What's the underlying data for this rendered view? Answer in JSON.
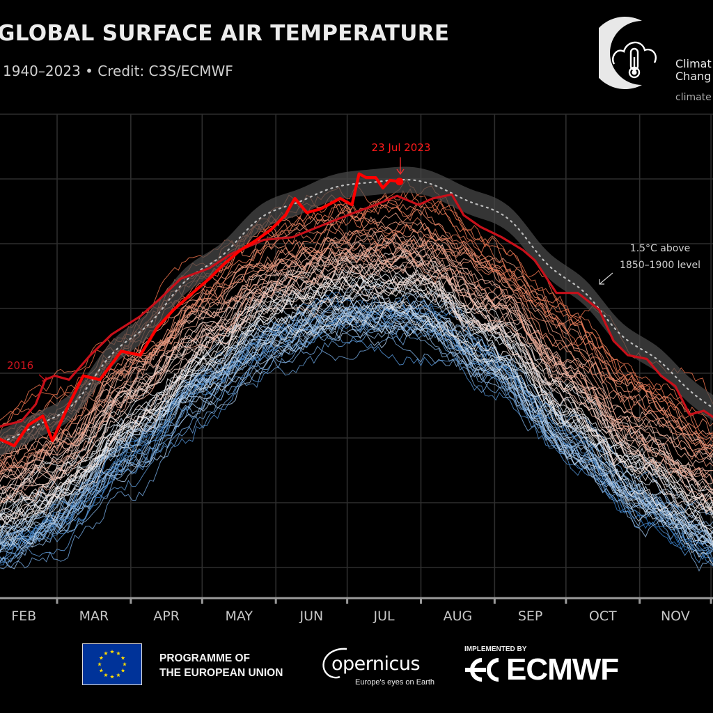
{
  "header": {
    "title": "GLOBAL SURFACE AIR TEMPERATURE",
    "subtitle": "1940–2023 • Credit: C3S/ECMWF"
  },
  "branding": {
    "c3s_line1": "Climat",
    "c3s_line2": "Chang",
    "c3s_url": "climate",
    "eu_line1": "PROGRAMME OF",
    "eu_line2": "THE EUROPEAN UNION",
    "copernicus_word": "opernicus",
    "copernicus_tagline": "Europe's eyes on Earth",
    "implemented_by": "IMPLEMENTED BY",
    "ecmwf": "ECMWF"
  },
  "colors": {
    "background": "#000000",
    "grid": "#2e2e2e",
    "axis": "#9a9a9a",
    "highlight_2023": "#ff0000",
    "highlight_2016": "#c8101a",
    "band": "#4a4a4a",
    "band_dots": "#bdbdbd",
    "cold_year": "#2f78c4",
    "mid_year": "#f2f2f2",
    "warm_year": "#e8704a",
    "eu_blue": "#003399",
    "eu_star": "#ffdd00"
  },
  "chart_data": {
    "type": "line",
    "title": "GLOBAL SURFACE AIR TEMPERATURE",
    "subtitle": "1940–2023 • Credit: C3S/ECMWF",
    "xlabel": "",
    "ylabel": "",
    "x_unit": "day of year",
    "xlim": [
      36,
      336
    ],
    "ylim": [
      13.75,
      17.5
    ],
    "grid": true,
    "y_gridlines": [
      14.0,
      14.5,
      15.0,
      15.5,
      16.0,
      16.5,
      17.0,
      17.5
    ],
    "y_tick_labels_visible": false,
    "month_ticks": [
      {
        "label": "",
        "day": 32
      },
      {
        "label": "",
        "day": 60
      },
      {
        "label": "",
        "day": 91
      },
      {
        "label": "",
        "day": 121
      },
      {
        "label": "",
        "day": 152
      },
      {
        "label": "",
        "day": 182
      },
      {
        "label": "",
        "day": 213
      },
      {
        "label": "",
        "day": 244
      },
      {
        "label": "",
        "day": 274
      },
      {
        "label": "",
        "day": 305
      },
      {
        "label": "",
        "day": 335
      }
    ],
    "month_labels": [
      {
        "label": "FEB",
        "start": 32,
        "end": 60
      },
      {
        "label": "MAR",
        "start": 60,
        "end": 91
      },
      {
        "label": "APR",
        "start": 91,
        "end": 121
      },
      {
        "label": "MAY",
        "start": 121,
        "end": 152
      },
      {
        "label": "JUN",
        "start": 152,
        "end": 182
      },
      {
        "label": "JUL",
        "start": 182,
        "end": 213
      },
      {
        "label": "AUG",
        "start": 213,
        "end": 244
      },
      {
        "label": "SEP",
        "start": 244,
        "end": 274
      },
      {
        "label": "OCT",
        "start": 274,
        "end": 305
      },
      {
        "label": "NOV",
        "start": 305,
        "end": 335
      }
    ],
    "threshold_band": {
      "name": "1.5°C above 1850–1900 level",
      "half_width_c": 0.1,
      "x": [
        36,
        60,
        91,
        121,
        152,
        182,
        209,
        244,
        274,
        305,
        335
      ],
      "values": [
        14.97,
        15.16,
        15.77,
        16.31,
        16.77,
        16.96,
        17.0,
        16.77,
        16.23,
        15.69,
        15.26
      ]
    },
    "background_years": {
      "first_year": 1940,
      "last_year": 2022,
      "climatology_x": [
        36,
        60,
        91,
        121,
        152,
        182,
        213,
        244,
        274,
        305,
        335
      ],
      "climatology_values": [
        14.62,
        14.83,
        15.37,
        15.85,
        16.23,
        16.39,
        16.37,
        16.02,
        15.48,
        14.99,
        14.67
      ],
      "anomaly_range_c": [
        -0.55,
        0.45
      ],
      "daily_noise_c": 0.07,
      "color_scale": [
        "#2f78c4",
        "#f2f2f2",
        "#e8704a"
      ]
    },
    "series": [
      {
        "name": "2016",
        "label": "2016",
        "x": [
          36,
          45,
          51,
          55,
          59,
          65,
          74,
          83,
          95,
          103,
          112,
          124,
          133,
          147,
          159,
          174,
          185,
          194,
          203,
          212,
          218,
          226,
          231,
          238,
          247,
          256,
          261,
          270,
          279,
          288,
          294,
          300,
          308,
          314,
          320,
          326,
          332,
          336
        ],
        "values": [
          15.09,
          15.13,
          15.26,
          15.45,
          15.48,
          15.45,
          15.64,
          15.8,
          15.94,
          16.07,
          16.23,
          16.31,
          16.42,
          16.53,
          16.55,
          16.66,
          16.74,
          16.8,
          16.87,
          16.8,
          16.85,
          16.88,
          16.72,
          16.63,
          16.55,
          16.45,
          16.37,
          16.12,
          16.12,
          15.99,
          15.75,
          15.64,
          15.61,
          15.48,
          15.4,
          15.18,
          15.21,
          15.16
        ]
      },
      {
        "name": "2023",
        "label": "23 Jul 2023",
        "x": [
          36,
          42,
          48,
          54,
          58,
          65,
          71,
          78,
          87,
          95,
          102,
          109,
          117,
          124,
          130,
          137,
          144,
          150,
          156,
          160,
          165,
          171,
          179,
          184,
          187,
          190,
          194,
          197,
          200,
          204
        ],
        "values": [
          14.99,
          14.94,
          15.1,
          15.17,
          14.98,
          15.26,
          15.48,
          15.45,
          15.67,
          15.64,
          15.85,
          15.99,
          16.12,
          16.23,
          16.34,
          16.45,
          16.53,
          16.61,
          16.72,
          16.85,
          16.74,
          16.77,
          16.85,
          16.8,
          17.04,
          17.01,
          17.01,
          16.93,
          16.99,
          16.98
        ]
      }
    ],
    "annotations": [
      {
        "text": "23 Jul 2023",
        "target_series": "2023",
        "x": 204
      },
      {
        "text": "2016",
        "target_series": "2016",
        "x": 51
      },
      {
        "text_line1": "1.5°C above",
        "text_line2": "1850–1900 level",
        "target": "threshold_band",
        "x": 260
      }
    ]
  }
}
